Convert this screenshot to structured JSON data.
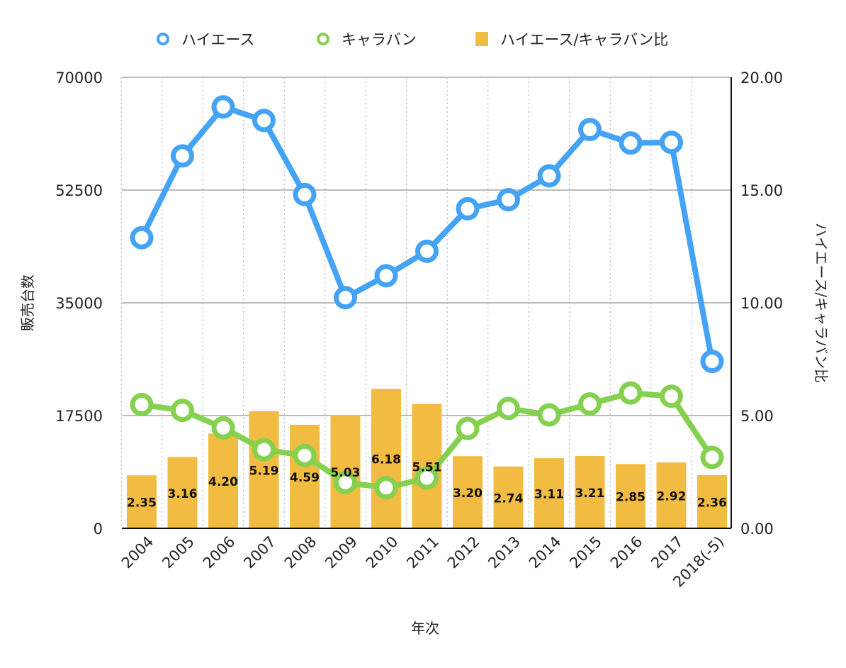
{
  "chart_data": {
    "type": "bar+line",
    "title": "",
    "xlabel": "年次",
    "ylabel_left": "販売台数",
    "ylabel_right": "ハイエース/キャラバン比",
    "categories": [
      "2004",
      "2005",
      "2006",
      "2007",
      "2008",
      "2009",
      "2010",
      "2011",
      "2012",
      "2013",
      "2014",
      "2015",
      "2016",
      "2017",
      "2018(-5)"
    ],
    "ylim_left": [
      0,
      70000
    ],
    "yticks_left": [
      "0",
      "17500",
      "35000",
      "52500",
      "70000"
    ],
    "ylim_right": [
      0,
      20
    ],
    "yticks_right": [
      "0.00",
      "5.00",
      "10.00",
      "15.00",
      "20.00"
    ],
    "grid": true,
    "legend_position": "top",
    "series": [
      {
        "name": "ハイエース",
        "type": "line",
        "axis": "left",
        "color": "#45a3f5",
        "values": [
          45100,
          57800,
          65400,
          63300,
          51800,
          35800,
          39200,
          43000,
          49600,
          51000,
          54700,
          61900,
          59800,
          59900,
          25900
        ]
      },
      {
        "name": "キャラバン",
        "type": "line",
        "axis": "left",
        "color": "#85d14f",
        "values": [
          19200,
          18300,
          15600,
          12200,
          11300,
          7100,
          6300,
          7800,
          15500,
          18600,
          17600,
          19300,
          21000,
          20500,
          11000
        ]
      },
      {
        "name": "ハイエース/キャラバン比",
        "type": "bar",
        "axis": "right",
        "color": "#f2bb41",
        "values": [
          2.35,
          3.16,
          4.2,
          5.19,
          4.59,
          5.03,
          6.18,
          5.51,
          3.2,
          2.74,
          3.11,
          3.21,
          2.85,
          2.92,
          2.36
        ],
        "labels": [
          "2.35",
          "3.16",
          "4.20",
          "5.19",
          "4.59",
          "5.03",
          "6.18",
          "5.51",
          "3.20",
          "2.74",
          "3.11",
          "3.21",
          "2.85",
          "2.92",
          "2.36"
        ]
      }
    ]
  }
}
